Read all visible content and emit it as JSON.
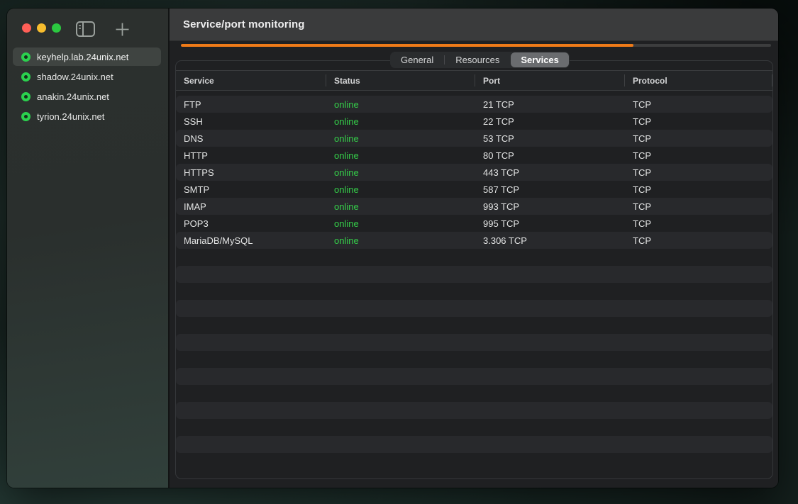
{
  "colors": {
    "accent_orange": "#ee7a18",
    "status_green": "#35d14a",
    "sidebar_dot_green": "#2bd14e",
    "traffic_red": "#ff5f57",
    "traffic_yellow": "#f7bd2e",
    "traffic_green": "#2bc840"
  },
  "titlebar": {
    "title": "Service/port monitoring"
  },
  "progress": {
    "percent": 76.7
  },
  "sidebar": {
    "servers": [
      {
        "label": "keyhelp.lab.24unix.net",
        "selected": true,
        "status": "online"
      },
      {
        "label": "shadow.24unix.net",
        "selected": false,
        "status": "online"
      },
      {
        "label": "anakin.24unix.net",
        "selected": false,
        "status": "online"
      },
      {
        "label": "tyrion.24unix.net",
        "selected": false,
        "status": "online"
      }
    ]
  },
  "tabs": [
    {
      "label": "General",
      "selected": false
    },
    {
      "label": "Resources",
      "selected": false
    },
    {
      "label": "Services",
      "selected": true
    }
  ],
  "table": {
    "columns": [
      "Service",
      "Status",
      "Port",
      "Protocol"
    ],
    "rows": [
      {
        "service": "FTP",
        "status": "online",
        "port": "21 TCP",
        "protocol": "TCP"
      },
      {
        "service": "SSH",
        "status": "online",
        "port": "22 TCP",
        "protocol": "TCP"
      },
      {
        "service": "DNS",
        "status": "online",
        "port": "53 TCP",
        "protocol": "TCP"
      },
      {
        "service": "HTTP",
        "status": "online",
        "port": "80 TCP",
        "protocol": "TCP"
      },
      {
        "service": "HTTPS",
        "status": "online",
        "port": "443 TCP",
        "protocol": "TCP"
      },
      {
        "service": "SMTP",
        "status": "online",
        "port": "587 TCP",
        "protocol": "TCP"
      },
      {
        "service": "IMAP",
        "status": "online",
        "port": "993 TCP",
        "protocol": "TCP"
      },
      {
        "service": "POP3",
        "status": "online",
        "port": "995 TCP",
        "protocol": "TCP"
      },
      {
        "service": "MariaDB/MySQL",
        "status": "online",
        "port": "3.306 TCP",
        "protocol": "TCP"
      }
    ],
    "empty_row_count": 13
  },
  "icons": {
    "sidebar_toggle": "sidebar-toggle-icon",
    "add": "plus-icon",
    "server_status": "status-dot-icon"
  }
}
